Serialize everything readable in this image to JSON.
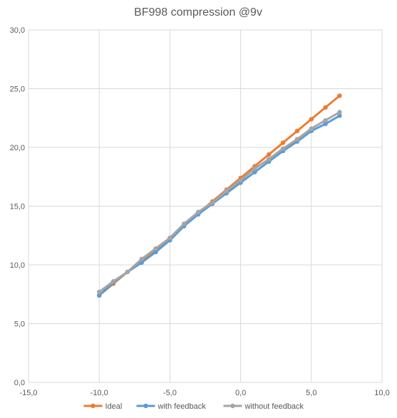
{
  "chart_data": {
    "type": "scatter",
    "title": "BF998 compression @9v",
    "xlabel": "",
    "ylabel": "",
    "xlim": [
      -15,
      10
    ],
    "ylim": [
      0,
      30
    ],
    "x_ticks": [
      "-15,0",
      "-10,0",
      "-5,0",
      "0,0",
      "5,0",
      "10,0"
    ],
    "y_ticks": [
      "0,0",
      "5,0",
      "10,0",
      "15,0",
      "20,0",
      "25,0",
      "30,0"
    ],
    "grid": "vertical and horizontal",
    "legend_position": "bottom",
    "series": [
      {
        "name": "Ideal",
        "color": "#ED7D31",
        "x": [
          -10,
          -9,
          -8,
          -7,
          -6,
          -5,
          -4,
          -3,
          -2,
          -1,
          0,
          1,
          2,
          3,
          4,
          5,
          6,
          7
        ],
        "y": [
          7.4,
          8.4,
          9.4,
          10.4,
          11.3,
          12.3,
          13.4,
          14.4,
          15.4,
          16.4,
          17.4,
          18.4,
          19.4,
          20.4,
          21.4,
          22.4,
          23.4,
          24.4
        ]
      },
      {
        "name": "with feedback",
        "color": "#5B9BD5",
        "x": [
          -10,
          -9,
          -8,
          -7,
          -6,
          -5,
          -4,
          -3,
          -2,
          -1,
          0,
          1,
          2,
          3,
          4,
          5,
          6,
          7
        ],
        "y": [
          7.4,
          8.5,
          9.4,
          10.2,
          11.1,
          12.1,
          13.3,
          14.3,
          15.2,
          16.1,
          17.0,
          17.9,
          18.8,
          19.7,
          20.5,
          21.4,
          22.0,
          22.7
        ]
      },
      {
        "name": "without feedback",
        "color": "#A5A5A5",
        "x": [
          -10,
          -9,
          -8,
          -7,
          -6,
          -5,
          -4,
          -3,
          -2,
          -1,
          0,
          1,
          2,
          3,
          4,
          5,
          6,
          7
        ],
        "y": [
          7.7,
          8.6,
          9.4,
          10.5,
          11.4,
          12.3,
          13.5,
          14.5,
          15.3,
          16.3,
          17.2,
          18.2,
          19.0,
          19.9,
          20.7,
          21.6,
          22.3,
          23.0
        ]
      }
    ]
  }
}
